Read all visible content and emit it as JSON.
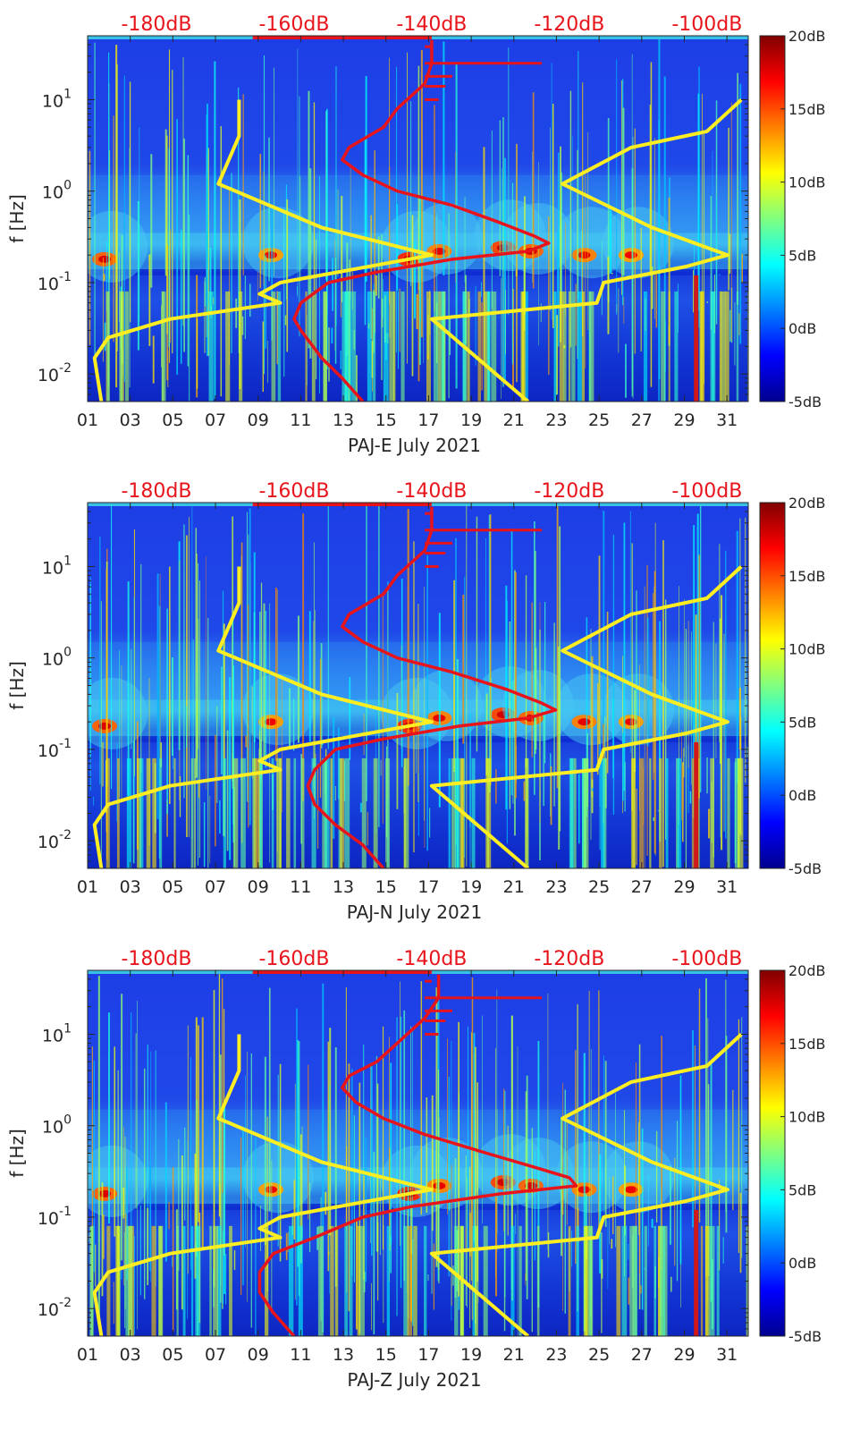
{
  "figure": {
    "colors": {
      "psd_curve": "#e8141b",
      "noise_model": "#ffee22",
      "top_label": "#e8141b",
      "axis": "#262626"
    },
    "colormap": "jet"
  },
  "chart_data": [
    {
      "type": "heatmap",
      "id": "panel-e",
      "xlabel": "PAJ-E July 2021",
      "ylabel": "f [Hz]",
      "x_ticks": [
        "01",
        "03",
        "05",
        "07",
        "09",
        "11",
        "13",
        "15",
        "17",
        "19",
        "21",
        "23",
        "25",
        "27",
        "29",
        "31"
      ],
      "xlim": [
        1,
        32
      ],
      "y_scale": "log",
      "ylim": [
        0.005,
        50
      ],
      "y_ticks": [
        {
          "value": 0.01,
          "label": "10",
          "exp": "-2"
        },
        {
          "value": 0.1,
          "label": "10",
          "exp": "-1"
        },
        {
          "value": 1,
          "label": "10",
          "exp": "0"
        },
        {
          "value": 10,
          "label": "10",
          "exp": "1"
        }
      ],
      "colorbar": {
        "range": [
          -5,
          20
        ],
        "ticks": [
          "20dB",
          "15dB",
          "10dB",
          "5dB",
          "0dB",
          "-5dB"
        ]
      },
      "db_axis": {
        "labels": [
          "-180dB",
          "-160dB",
          "-140dB",
          "-120dB",
          "-100dB"
        ],
        "values": [
          -180,
          -160,
          -140,
          -120,
          -100
        ],
        "range": [
          -190,
          -94
        ]
      },
      "curves": {
        "psd": [
          {
            "f": 0.005,
            "db": -150
          },
          {
            "f": 0.009,
            "db": -153
          },
          {
            "f": 0.015,
            "db": -156
          },
          {
            "f": 0.03,
            "db": -159
          },
          {
            "f": 0.04,
            "db": -160
          },
          {
            "f": 0.06,
            "db": -159
          },
          {
            "f": 0.1,
            "db": -155
          },
          {
            "f": 0.13,
            "db": -148
          },
          {
            "f": 0.18,
            "db": -137
          },
          {
            "f": 0.22,
            "db": -126
          },
          {
            "f": 0.27,
            "db": -123
          },
          {
            "f": 0.32,
            "db": -125
          },
          {
            "f": 0.45,
            "db": -130
          },
          {
            "f": 0.7,
            "db": -137
          },
          {
            "f": 1.0,
            "db": -145
          },
          {
            "f": 1.5,
            "db": -150
          },
          {
            "f": 2.2,
            "db": -153
          },
          {
            "f": 3.0,
            "db": -152
          },
          {
            "f": 5,
            "db": -147
          },
          {
            "f": 8,
            "db": -145
          },
          {
            "f": 15,
            "db": -141
          },
          {
            "f": 25,
            "db": -140
          },
          {
            "f": 45,
            "db": -140
          }
        ],
        "nlnm": [
          {
            "f": 0.005,
            "db": -188
          },
          {
            "f": 0.015,
            "db": -189
          },
          {
            "f": 0.025,
            "db": -187
          },
          {
            "f": 0.04,
            "db": -178
          },
          {
            "f": 0.06,
            "db": -162
          },
          {
            "f": 0.075,
            "db": -165
          },
          {
            "f": 0.1,
            "db": -162
          },
          {
            "f": 0.2,
            "db": -140
          },
          {
            "f": 0.4,
            "db": -156
          },
          {
            "f": 1.2,
            "db": -171
          },
          {
            "f": 4.0,
            "db": -168
          },
          {
            "f": 10,
            "db": -168
          }
        ],
        "nhnm": [
          {
            "f": 0.005,
            "db": -126
          },
          {
            "f": 0.04,
            "db": -140
          },
          {
            "f": 0.06,
            "db": -116
          },
          {
            "f": 0.1,
            "db": -115
          },
          {
            "f": 0.15,
            "db": -103
          },
          {
            "f": 0.2,
            "db": -97
          },
          {
            "f": 0.4,
            "db": -108
          },
          {
            "f": 1.2,
            "db": -121
          },
          {
            "f": 3.0,
            "db": -111
          },
          {
            "f": 4.5,
            "db": -100
          },
          {
            "f": 10,
            "db": -95
          }
        ]
      }
    },
    {
      "type": "heatmap",
      "id": "panel-n",
      "xlabel": "PAJ-N July 2021",
      "ylabel": "f [Hz]",
      "x_ticks": [
        "01",
        "03",
        "05",
        "07",
        "09",
        "11",
        "13",
        "15",
        "17",
        "19",
        "21",
        "23",
        "25",
        "27",
        "29",
        "31"
      ],
      "xlim": [
        1,
        32
      ],
      "y_scale": "log",
      "ylim": [
        0.005,
        50
      ],
      "y_ticks": [
        {
          "value": 0.01,
          "label": "10",
          "exp": "-2"
        },
        {
          "value": 0.1,
          "label": "10",
          "exp": "-1"
        },
        {
          "value": 1,
          "label": "10",
          "exp": "0"
        },
        {
          "value": 10,
          "label": "10",
          "exp": "1"
        }
      ],
      "colorbar": {
        "range": [
          -5,
          20
        ],
        "ticks": [
          "20dB",
          "15dB",
          "10dB",
          "5dB",
          "0dB",
          "-5dB"
        ]
      },
      "db_axis": {
        "labels": [
          "-180dB",
          "-160dB",
          "-140dB",
          "-120dB",
          "-100dB"
        ],
        "values": [
          -180,
          -160,
          -140,
          -120,
          -100
        ],
        "range": [
          -190,
          -94
        ]
      },
      "curves": {
        "psd": [
          {
            "f": 0.005,
            "db": -147
          },
          {
            "f": 0.009,
            "db": -150
          },
          {
            "f": 0.015,
            "db": -154
          },
          {
            "f": 0.025,
            "db": -157
          },
          {
            "f": 0.04,
            "db": -158
          },
          {
            "f": 0.06,
            "db": -157
          },
          {
            "f": 0.1,
            "db": -154
          },
          {
            "f": 0.13,
            "db": -147
          },
          {
            "f": 0.18,
            "db": -136
          },
          {
            "f": 0.22,
            "db": -126
          },
          {
            "f": 0.27,
            "db": -122
          },
          {
            "f": 0.32,
            "db": -124
          },
          {
            "f": 0.45,
            "db": -129
          },
          {
            "f": 0.7,
            "db": -137
          },
          {
            "f": 1.0,
            "db": -145
          },
          {
            "f": 1.5,
            "db": -150
          },
          {
            "f": 2.2,
            "db": -153
          },
          {
            "f": 3.0,
            "db": -152
          },
          {
            "f": 5,
            "db": -147
          },
          {
            "f": 8,
            "db": -145
          },
          {
            "f": 15,
            "db": -141
          },
          {
            "f": 25,
            "db": -140
          },
          {
            "f": 45,
            "db": -140
          }
        ],
        "nlnm": [
          {
            "f": 0.005,
            "db": -188
          },
          {
            "f": 0.015,
            "db": -189
          },
          {
            "f": 0.025,
            "db": -187
          },
          {
            "f": 0.04,
            "db": -178
          },
          {
            "f": 0.06,
            "db": -162
          },
          {
            "f": 0.075,
            "db": -165
          },
          {
            "f": 0.1,
            "db": -162
          },
          {
            "f": 0.2,
            "db": -140
          },
          {
            "f": 0.4,
            "db": -156
          },
          {
            "f": 1.2,
            "db": -171
          },
          {
            "f": 4.0,
            "db": -168
          },
          {
            "f": 10,
            "db": -168
          }
        ],
        "nhnm": [
          {
            "f": 0.005,
            "db": -126
          },
          {
            "f": 0.04,
            "db": -140
          },
          {
            "f": 0.06,
            "db": -116
          },
          {
            "f": 0.1,
            "db": -115
          },
          {
            "f": 0.15,
            "db": -103
          },
          {
            "f": 0.2,
            "db": -97
          },
          {
            "f": 0.4,
            "db": -108
          },
          {
            "f": 1.2,
            "db": -121
          },
          {
            "f": 3.0,
            "db": -111
          },
          {
            "f": 4.5,
            "db": -100
          },
          {
            "f": 10,
            "db": -95
          }
        ]
      }
    },
    {
      "type": "heatmap",
      "id": "panel-z",
      "xlabel": "PAJ-Z July 2021",
      "ylabel": "f [Hz]",
      "x_ticks": [
        "01",
        "03",
        "05",
        "07",
        "09",
        "11",
        "13",
        "15",
        "17",
        "19",
        "21",
        "23",
        "25",
        "27",
        "29",
        "31"
      ],
      "xlim": [
        1,
        32
      ],
      "y_scale": "log",
      "ylim": [
        0.005,
        50
      ],
      "y_ticks": [
        {
          "value": 0.01,
          "label": "10",
          "exp": "-2"
        },
        {
          "value": 0.1,
          "label": "10",
          "exp": "-1"
        },
        {
          "value": 1,
          "label": "10",
          "exp": "0"
        },
        {
          "value": 10,
          "label": "10",
          "exp": "1"
        }
      ],
      "colorbar": {
        "range": [
          -5,
          20
        ],
        "ticks": [
          "20dB",
          "15dB",
          "10dB",
          "5dB",
          "0dB",
          "-5dB"
        ]
      },
      "db_axis": {
        "labels": [
          "-180dB",
          "-160dB",
          "-140dB",
          "-120dB",
          "-100dB"
        ],
        "values": [
          -180,
          -160,
          -140,
          -120,
          -100
        ],
        "range": [
          -190,
          -94
        ]
      },
      "curves": {
        "psd": [
          {
            "f": 0.005,
            "db": -160
          },
          {
            "f": 0.009,
            "db": -163
          },
          {
            "f": 0.015,
            "db": -165
          },
          {
            "f": 0.025,
            "db": -165
          },
          {
            "f": 0.04,
            "db": -163
          },
          {
            "f": 0.06,
            "db": -157
          },
          {
            "f": 0.1,
            "db": -150
          },
          {
            "f": 0.13,
            "db": -143
          },
          {
            "f": 0.18,
            "db": -130
          },
          {
            "f": 0.22,
            "db": -119
          },
          {
            "f": 0.27,
            "db": -120
          },
          {
            "f": 0.35,
            "db": -125
          },
          {
            "f": 0.5,
            "db": -132
          },
          {
            "f": 0.8,
            "db": -141
          },
          {
            "f": 1.2,
            "db": -147
          },
          {
            "f": 1.8,
            "db": -151
          },
          {
            "f": 2.6,
            "db": -153
          },
          {
            "f": 3.5,
            "db": -152
          },
          {
            "f": 5,
            "db": -148
          },
          {
            "f": 8,
            "db": -145
          },
          {
            "f": 15,
            "db": -141
          },
          {
            "f": 25,
            "db": -139
          },
          {
            "f": 45,
            "db": -139
          }
        ],
        "nlnm": [
          {
            "f": 0.005,
            "db": -188
          },
          {
            "f": 0.015,
            "db": -189
          },
          {
            "f": 0.025,
            "db": -187
          },
          {
            "f": 0.04,
            "db": -178
          },
          {
            "f": 0.06,
            "db": -162
          },
          {
            "f": 0.075,
            "db": -165
          },
          {
            "f": 0.1,
            "db": -162
          },
          {
            "f": 0.2,
            "db": -140
          },
          {
            "f": 0.4,
            "db": -156
          },
          {
            "f": 1.2,
            "db": -171
          },
          {
            "f": 4.0,
            "db": -168
          },
          {
            "f": 10,
            "db": -168
          }
        ],
        "nhnm": [
          {
            "f": 0.005,
            "db": -126
          },
          {
            "f": 0.04,
            "db": -140
          },
          {
            "f": 0.06,
            "db": -116
          },
          {
            "f": 0.1,
            "db": -115
          },
          {
            "f": 0.15,
            "db": -103
          },
          {
            "f": 0.2,
            "db": -97
          },
          {
            "f": 0.4,
            "db": -108
          },
          {
            "f": 1.2,
            "db": -121
          },
          {
            "f": 3.0,
            "db": -111
          },
          {
            "f": 4.5,
            "db": -100
          },
          {
            "f": 10,
            "db": -95
          }
        ]
      }
    }
  ]
}
